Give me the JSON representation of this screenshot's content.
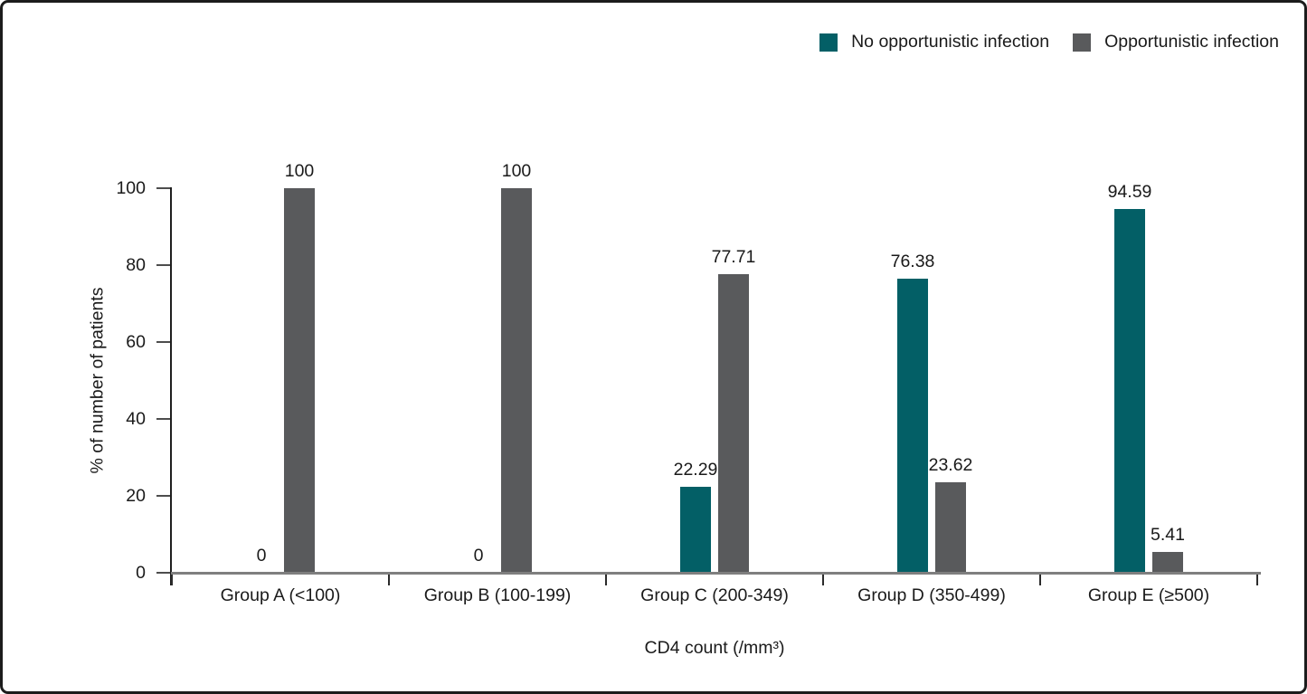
{
  "chart_data": {
    "type": "bar",
    "title": "",
    "xlabel": "CD4 count (/mm³)",
    "ylabel": "% of number of patients",
    "categories": [
      "Group A (<100)",
      "Group B (100-199)",
      "Group C (200-349)",
      "Group D (350-499)",
      "Group E (≥500)"
    ],
    "series": [
      {
        "name": "No opportunistic infection",
        "color": "#035f66",
        "values": [
          0,
          0,
          22.29,
          76.38,
          94.59
        ],
        "labels": [
          "0",
          "0",
          "22.29",
          "76.38",
          "94.59"
        ]
      },
      {
        "name": "Opportunistic infection",
        "color": "#595a5c",
        "values": [
          100,
          100,
          77.71,
          23.62,
          5.41
        ],
        "labels": [
          "100",
          "100",
          "77.71",
          "23.62",
          "5.41"
        ]
      }
    ],
    "y_ticks": [
      0,
      20,
      40,
      60,
      80,
      100
    ],
    "ylim": [
      0,
      100
    ],
    "grid": false,
    "legend_position": "top-right"
  }
}
